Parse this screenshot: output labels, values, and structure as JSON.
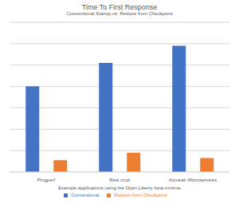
{
  "chart_data": {
    "type": "bar",
    "title": "Time To First Response",
    "subtitle": "Conventional Startup vs. Restore from Checkpoint",
    "x_label": "Example applications using the Open Liberty beta runtime",
    "categories": [
      "Pingperf",
      "Rest crud",
      "Acmeair Microservices"
    ],
    "series": [
      {
        "name": "Conventional",
        "color": "#4472c4",
        "values": [
          4.0,
          5.1,
          5.9
        ]
      },
      {
        "name": "Restore from Checkpoint",
        "color": "#ed7d31",
        "values": [
          0.55,
          0.9,
          0.65
        ]
      }
    ],
    "ylim": [
      0,
      7
    ],
    "yticks": [
      0,
      1,
      2,
      3,
      4,
      5,
      6,
      7
    ],
    "grid": true,
    "legend": "bottom",
    "tick_labels": "x"
  }
}
